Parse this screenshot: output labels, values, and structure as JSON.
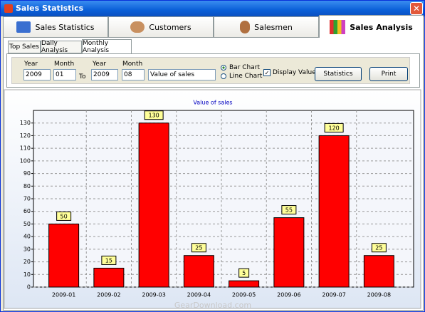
{
  "window": {
    "title": "Sales Statistics"
  },
  "tabs": [
    "Sales Statistics",
    "Customers",
    "Salesmen",
    "Sales Analysis"
  ],
  "subtabs": [
    "Top Sales",
    "Daily Analysis",
    "Monthly Analysis"
  ],
  "controls": {
    "year_label_1": "Year",
    "month_label_1": "Month",
    "from_year": "2009",
    "from_month": "01",
    "to": "To",
    "year_label_2": "Year",
    "month_label_2": "Month",
    "to_year": "2009",
    "to_month": "08",
    "measure": "Value of sales",
    "bar_chart": "Bar Chart",
    "line_chart": "Line Chart",
    "display_value": "Display Value",
    "statistics": "Statistics",
    "print": "Print"
  },
  "watermark": "GearDownload.com",
  "chart_data": {
    "type": "bar",
    "title": "Value of sales",
    "categories": [
      "2009-01",
      "2009-02",
      "2009-03",
      "2009-04",
      "2009-05",
      "2009-06",
      "2009-07",
      "2009-08"
    ],
    "values": [
      50,
      15,
      130,
      25,
      5,
      55,
      120,
      25
    ],
    "color": "#ff0000",
    "label_color": "#ffff99",
    "ylim": [
      0,
      140
    ],
    "yticks": [
      0,
      10,
      20,
      30,
      40,
      50,
      60,
      70,
      80,
      90,
      100,
      110,
      120,
      130
    ],
    "grid": true
  }
}
